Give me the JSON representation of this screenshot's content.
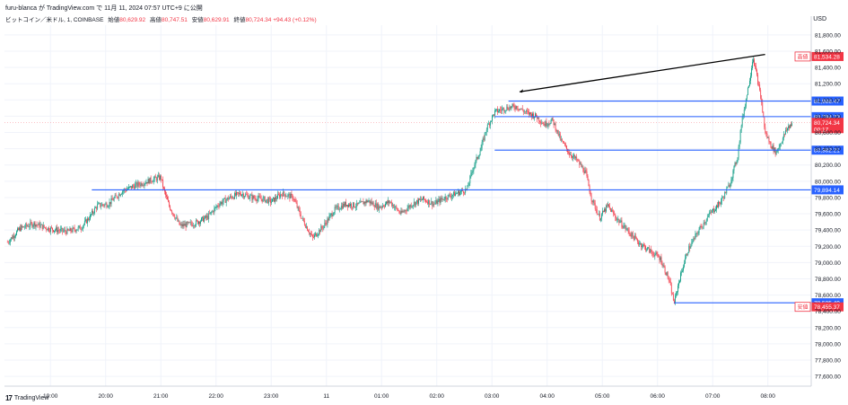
{
  "header": {
    "published": "furu-blanca が TradingView.com で 11月 11, 2024 07:57 UTC+9 に公開"
  },
  "legend": {
    "symbol": "ビットコイン／米ドル, 1, COINBASE",
    "open_label": "始値",
    "open": "80,629.92",
    "high_label": "高値",
    "high": "80,747.51",
    "low_label": "安値",
    "low": "80,629.91",
    "close_label": "終値",
    "close": "80,724.34",
    "change": "+94.43 (+0.12%)"
  },
  "axis": {
    "currency": "USD"
  },
  "footer": {
    "brand": "TradingView",
    "logo": "tv-logo-icon"
  },
  "colors": {
    "up": "#089981",
    "down": "#f23645",
    "hline": "#2962ff",
    "trendline": "#000000",
    "high_tag": "#f23645",
    "low_tag": "#f23645"
  },
  "chart_data": {
    "type": "candlestick",
    "y_ticks": [
      77600,
      77800,
      78000,
      78200,
      78400,
      78600,
      78800,
      79000,
      79200,
      79400,
      79600,
      79800,
      80000,
      80200,
      80400,
      80600,
      80800,
      81000,
      81200,
      81400,
      81600,
      81800
    ],
    "x_ticks": [
      "19:00",
      "20:00",
      "21:00",
      "22:00",
      "23:00",
      "11",
      "01:00",
      "02:00",
      "03:00",
      "04:00",
      "05:00",
      "06:00",
      "07:00",
      "08:00"
    ],
    "ylim": [
      77480,
      81920
    ],
    "x_hours": [
      18.2,
      20.0
    ],
    "price_path": [
      [
        18.22,
        79250
      ],
      [
        18.45,
        79420
      ],
      [
        18.7,
        79480
      ],
      [
        18.95,
        79420
      ],
      [
        19.3,
        79380
      ],
      [
        19.55,
        79430
      ],
      [
        19.7,
        79550
      ],
      [
        19.85,
        79700
      ],
      [
        20.05,
        79720
      ],
      [
        20.3,
        79880
      ],
      [
        20.55,
        79950
      ],
      [
        20.8,
        80010
      ],
      [
        21.0,
        80050
      ],
      [
        21.05,
        79900
      ],
      [
        21.15,
        79700
      ],
      [
        21.35,
        79450
      ],
      [
        21.6,
        79480
      ],
      [
        21.85,
        79560
      ],
      [
        22.05,
        79720
      ],
      [
        22.25,
        79800
      ],
      [
        22.45,
        79850
      ],
      [
        22.65,
        79800
      ],
      [
        22.85,
        79780
      ],
      [
        23.0,
        79750
      ],
      [
        23.2,
        79850
      ],
      [
        23.4,
        79800
      ],
      [
        23.55,
        79550
      ],
      [
        23.75,
        79300
      ],
      [
        23.95,
        79450
      ],
      [
        24.15,
        79650
      ],
      [
        24.35,
        79720
      ],
      [
        24.55,
        79700
      ],
      [
        24.75,
        79760
      ],
      [
        24.95,
        79680
      ],
      [
        25.15,
        79750
      ],
      [
        25.35,
        79600
      ],
      [
        25.55,
        79720
      ],
      [
        25.75,
        79780
      ],
      [
        25.95,
        79720
      ],
      [
        26.15,
        79800
      ],
      [
        26.35,
        79850
      ],
      [
        26.55,
        79900
      ],
      [
        26.65,
        80150
      ],
      [
        26.8,
        80400
      ],
      [
        26.9,
        80650
      ],
      [
        27.05,
        80850
      ],
      [
        27.25,
        80900
      ],
      [
        27.45,
        80920
      ],
      [
        27.6,
        80850
      ],
      [
        27.8,
        80800
      ],
      [
        27.95,
        80700
      ],
      [
        28.1,
        80750
      ],
      [
        28.25,
        80500
      ],
      [
        28.4,
        80350
      ],
      [
        28.55,
        80250
      ],
      [
        28.7,
        80100
      ],
      [
        28.8,
        79800
      ],
      [
        28.95,
        79550
      ],
      [
        29.1,
        79700
      ],
      [
        29.25,
        79550
      ],
      [
        29.45,
        79400
      ],
      [
        29.65,
        79250
      ],
      [
        29.85,
        79150
      ],
      [
        30.05,
        79050
      ],
      [
        30.2,
        78800
      ],
      [
        30.3,
        78500
      ],
      [
        30.4,
        78800
      ],
      [
        30.55,
        79150
      ],
      [
        30.75,
        79400
      ],
      [
        30.95,
        79600
      ],
      [
        31.15,
        79750
      ],
      [
        31.3,
        79950
      ],
      [
        31.45,
        80300
      ],
      [
        31.52,
        80700
      ],
      [
        31.6,
        81000
      ],
      [
        31.68,
        81300
      ],
      [
        31.73,
        81534
      ],
      [
        31.8,
        81300
      ],
      [
        31.88,
        81000
      ],
      [
        31.95,
        80600
      ],
      [
        32.05,
        80450
      ],
      [
        32.15,
        80350
      ],
      [
        32.25,
        80500
      ],
      [
        32.35,
        80650
      ],
      [
        32.45,
        80724
      ]
    ],
    "series": [
      {
        "name": "ビットコイン／米ドル"
      }
    ],
    "horizontal_levels": [
      {
        "price": 80986.47,
        "label": "80,986.47",
        "x_start": 27.3
      },
      {
        "price": 80794.73,
        "label": "80,794.73",
        "x_start": 27.05
      },
      {
        "price": 80382.21,
        "label": "80,382.21",
        "x_start": 27.05
      },
      {
        "price": 79894.14,
        "label": "79,894.14",
        "x_start": 19.75
      },
      {
        "price": 78505.49,
        "label": "78,505.49",
        "x_start": 30.3
      }
    ],
    "trend_line": {
      "x1": 27.5,
      "y1": 81100,
      "x2": 31.95,
      "y2": 81560
    },
    "last_price": {
      "label": "80,724.34",
      "countdown": "00:17",
      "price": 80724.34
    },
    "session_high": {
      "tag": "高値",
      "label": "81,534.28",
      "price": 81534.28
    },
    "session_low": {
      "tag": "安値",
      "label": "78,455.37",
      "price": 78455.37
    }
  }
}
